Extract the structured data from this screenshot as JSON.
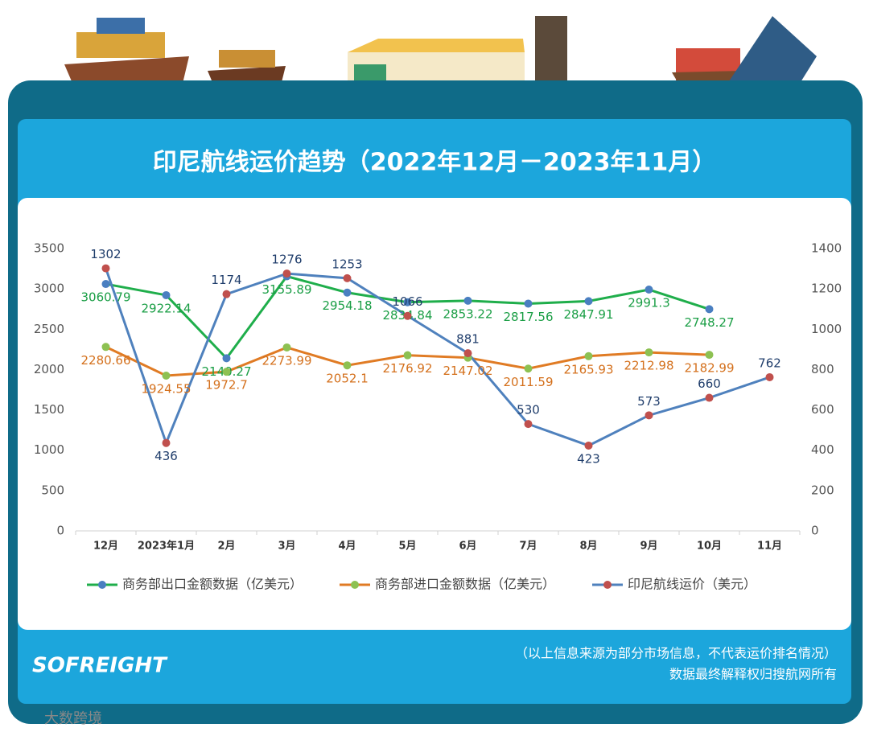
{
  "chart_data": {
    "type": "line",
    "title": "印尼航线运价趋势（2022年12月－2023年11月）",
    "categories": [
      "12月",
      "2023年1月",
      "2月",
      "3月",
      "4月",
      "5月",
      "6月",
      "7月",
      "8月",
      "9月",
      "10月",
      "11月"
    ],
    "series": [
      {
        "name": "商务部出口金额数据（亿美元）",
        "color": "#1fae4b",
        "marker_color": "#4a7fc1",
        "label_color": "#1a9e45",
        "values": [
          3060.79,
          2922.14,
          2140.27,
          3155.89,
          2954.18,
          2834.84,
          2853.22,
          2817.56,
          2847.91,
          2991.3,
          2748.27,
          null
        ]
      },
      {
        "name": "商务部进口金额数据（亿美元）",
        "color": "#e07b24",
        "marker_color": "#8dc152",
        "label_color": "#d4701c",
        "values": [
          2280.66,
          1924.55,
          1972.7,
          2273.99,
          2052.1,
          2176.92,
          2147.02,
          2011.59,
          2165.93,
          2212.98,
          2182.99,
          null
        ]
      },
      {
        "name": "印尼航线运价（美元）",
        "color": "#4f81bd",
        "marker_color": "#c0504d",
        "label_color": "#1f3d6b",
        "axis": "y2",
        "values": [
          1302,
          436,
          1174,
          1276,
          1253,
          1066,
          881,
          530,
          423,
          573,
          660,
          762
        ]
      }
    ],
    "ylim": [
      0,
      3500
    ],
    "yticks": [
      0,
      500,
      1000,
      1500,
      2000,
      2500,
      3000,
      3500
    ],
    "y2lim": [
      0,
      1400
    ],
    "y2ticks": [
      0,
      200,
      400,
      600,
      800,
      1000,
      1200,
      1400
    ],
    "grid": false,
    "legend": "bottom"
  },
  "footer": {
    "logo": "SOFREIGHT",
    "source_note": "（以上信息来源为部分市场信息，不代表运价排名情况）",
    "rights_note": "数据最终解释权归搜航网所有",
    "watermark": "大数跨境"
  }
}
